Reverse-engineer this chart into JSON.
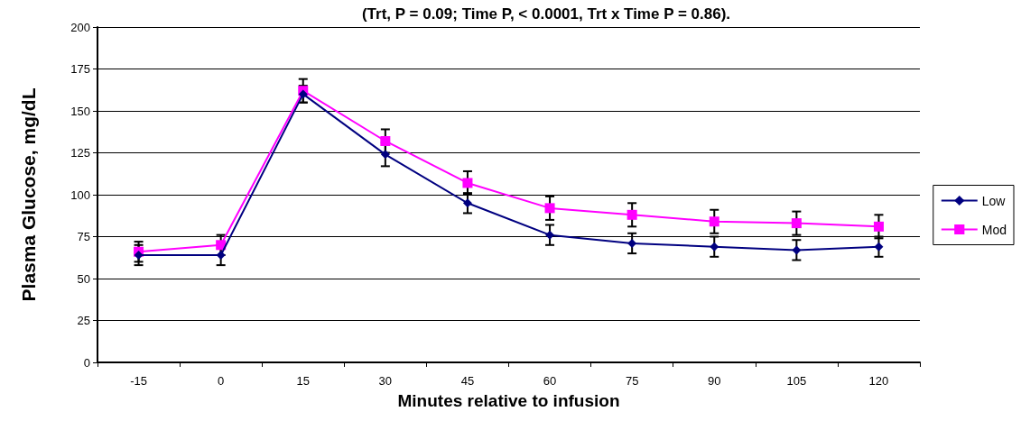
{
  "chart_data": {
    "type": "line",
    "title": "(Trt, P = 0.09; Time P, < 0.0001, Trt x Time P = 0.86).",
    "xlabel": "Minutes relative to infusion",
    "ylabel": "Plasma Glucose, mg/dL",
    "categories": [
      "-15",
      "0",
      "15",
      "30",
      "45",
      "60",
      "75",
      "90",
      "105",
      "120"
    ],
    "series": [
      {
        "name": "Low",
        "color": "#000080",
        "marker": "diamond",
        "values": [
          64,
          64,
          160,
          124,
          95,
          76,
          71,
          69,
          67,
          69
        ],
        "errors": [
          6,
          6,
          5,
          7,
          6,
          6,
          6,
          6,
          6,
          6
        ]
      },
      {
        "name": "Mod",
        "color": "#ff00ff",
        "marker": "square",
        "values": [
          66,
          70,
          162,
          132,
          107,
          92,
          88,
          84,
          83,
          81
        ],
        "errors": [
          6,
          6,
          7,
          7,
          7,
          7,
          7,
          7,
          7,
          7
        ]
      }
    ],
    "ylim": [
      0,
      200
    ],
    "yticks": [
      0,
      25,
      50,
      75,
      100,
      125,
      150,
      175,
      200
    ],
    "grid": "y",
    "legend": "right"
  }
}
